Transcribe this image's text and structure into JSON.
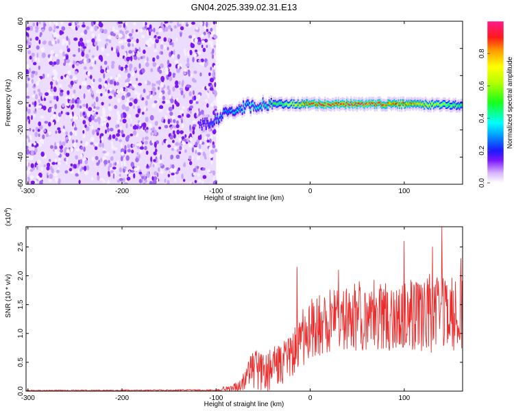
{
  "title": "GN04.2025.339.02.31.E13",
  "chart_data": [
    {
      "type": "heatmap",
      "name": "spectrogram",
      "xlabel": "Height of straight line (km)",
      "ylabel": "Frequency (Hz)",
      "xlim": [
        -302,
        162
      ],
      "ylim": [
        -60,
        60
      ],
      "x_ticks": [
        -300,
        -200,
        -100,
        0,
        100
      ],
      "y_ticks": [
        -60,
        -40,
        -20,
        0,
        20,
        40,
        60
      ],
      "noise_region_x": [
        -302,
        -100
      ],
      "signal": {
        "trace": [
          {
            "x": -110,
            "f": -15
          },
          {
            "x": -100,
            "f": -12
          },
          {
            "x": -90,
            "f": -8
          },
          {
            "x": -80,
            "f": -5
          },
          {
            "x": -70,
            "f": -3
          },
          {
            "x": -60,
            "f": -2
          },
          {
            "x": -40,
            "f": -1
          },
          {
            "x": 0,
            "f": -1
          },
          {
            "x": 100,
            "f": -1
          },
          {
            "x": 162,
            "f": -2
          }
        ],
        "amplitude": [
          {
            "x": -115,
            "a": 0.2
          },
          {
            "x": -100,
            "a": 0.3
          },
          {
            "x": -80,
            "a": 0.35
          },
          {
            "x": -50,
            "a": 0.45
          },
          {
            "x": -30,
            "a": 0.55
          },
          {
            "x": -10,
            "a": 0.75
          },
          {
            "x": 0,
            "a": 0.92
          },
          {
            "x": 60,
            "a": 0.95
          },
          {
            "x": 100,
            "a": 0.85
          },
          {
            "x": 130,
            "a": 0.7
          },
          {
            "x": 162,
            "a": 0.5
          }
        ]
      }
    },
    {
      "type": "line",
      "name": "snr",
      "xlabel": "Height of straight line (km)",
      "ylabel": "SNR (10 * v/v)",
      "scale_label": "(x10",
      "scale_exponent": "4",
      "scale_close": ")",
      "xlim": [
        -302,
        162
      ],
      "ylim": [
        0,
        2.85
      ],
      "x_ticks": [
        -300,
        -200,
        -100,
        0,
        100
      ],
      "y_ticks": [
        0.0,
        0.5,
        1.0,
        1.5,
        2.0,
        2.5
      ],
      "y_tick_labels": [
        "0.0",
        "0.5",
        "1.0",
        "1.5",
        "2.0",
        "2.5"
      ],
      "color": "#ee2a2a",
      "envelope": [
        {
          "x": -302,
          "base": 0.0,
          "amp": 0.02
        },
        {
          "x": -100,
          "base": 0.0,
          "amp": 0.03
        },
        {
          "x": -75,
          "base": 0.05,
          "amp": 0.12
        },
        {
          "x": -60,
          "base": 0.35,
          "amp": 0.35
        },
        {
          "x": -45,
          "base": 0.3,
          "amp": 0.35
        },
        {
          "x": -30,
          "base": 0.45,
          "amp": 0.4
        },
        {
          "x": -15,
          "base": 0.75,
          "amp": 0.5
        },
        {
          "x": 0,
          "base": 1.0,
          "amp": 0.55
        },
        {
          "x": 20,
          "base": 1.15,
          "amp": 0.55
        },
        {
          "x": 50,
          "base": 1.25,
          "amp": 0.6
        },
        {
          "x": 100,
          "base": 1.25,
          "amp": 0.65
        },
        {
          "x": 140,
          "base": 1.3,
          "amp": 0.7
        },
        {
          "x": 162,
          "base": 1.2,
          "amp": 0.65
        }
      ],
      "peaks": [
        {
          "x": -14,
          "y": 2.15
        },
        {
          "x": 30,
          "y": 2.1
        },
        {
          "x": 100,
          "y": 2.6
        },
        {
          "x": 130,
          "y": 2.5
        },
        {
          "x": 140,
          "y": 2.85
        },
        {
          "x": 160,
          "y": 2.3
        }
      ]
    }
  ],
  "colorbar": {
    "label": "Normalized spectral amplitude",
    "range": [
      0.0,
      1.0
    ],
    "ticks": [
      0.0,
      0.2,
      0.4,
      0.6,
      0.8
    ],
    "tick_labels": [
      "0.0",
      "0.2",
      "0.4",
      "0.6",
      "0.8"
    ]
  }
}
